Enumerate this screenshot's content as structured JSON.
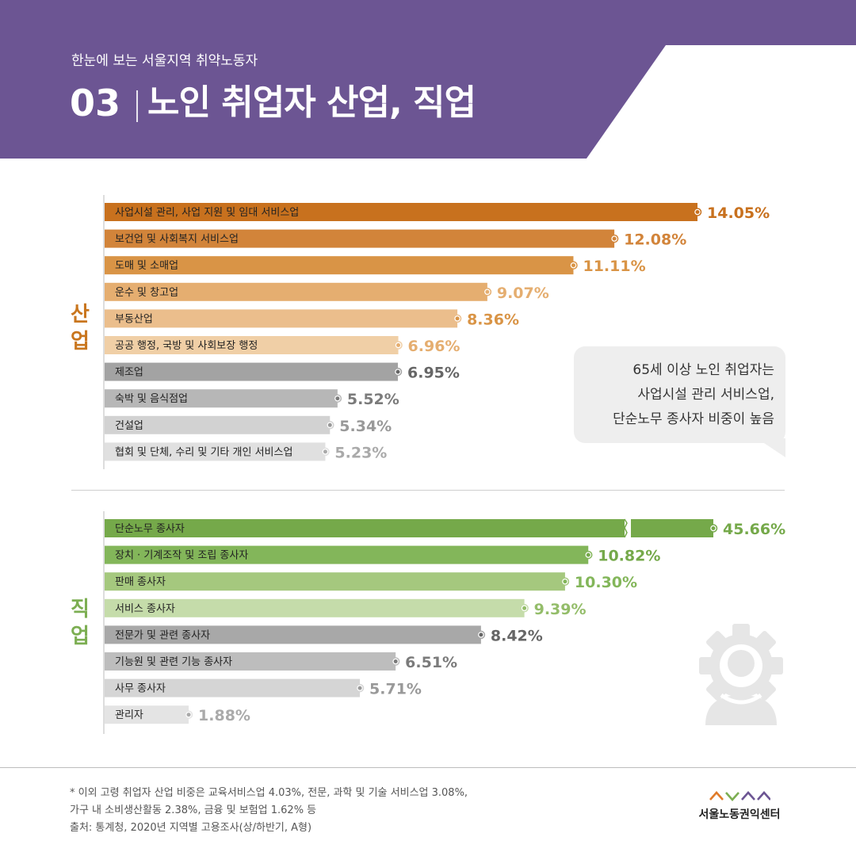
{
  "header": {
    "subtitle": "한눈에 보는 서울지역 취약노동자",
    "number": "03",
    "title": "노인 취업자 산업, 직업"
  },
  "sections": {
    "industry_label": [
      "산",
      "업"
    ],
    "occupation_label": [
      "직",
      "업"
    ]
  },
  "callout": {
    "lines": [
      "65세 이상 노인 취업자는",
      "사업시설 관리 서비스업,",
      "단순노무 종사자 비중이 높음"
    ]
  },
  "colors": {
    "header": "#6c5593",
    "industry_label": "#c9761e",
    "occupation_label": "#7cae52"
  },
  "icons": {
    "occupation_decoration": "gear-person-icon",
    "logo": "chevron-wave-icon"
  },
  "chart_data": [
    {
      "type": "bar",
      "orientation": "horizontal",
      "unit": "%",
      "categories": [
        "사업시설 관리, 사업 지원 및 임대 서비스업",
        "보건업 및 사회복지 서비스업",
        "도매 및 소매업",
        "운수 및 창고업",
        "부동산업",
        "공공 행정, 국방 및 사회보장 행정",
        "제조업",
        "숙박 및 음식점업",
        "건설업",
        "협회 및 단체, 수리 및 기타 개인  서비스업"
      ],
      "values": [
        14.05,
        12.08,
        11.11,
        9.07,
        8.36,
        6.96,
        6.95,
        5.52,
        5.34,
        5.23
      ],
      "value_labels": [
        "14.05%",
        "12.08%",
        "11.11%",
        "9.07%",
        "8.36%",
        "6.96%",
        "6.95%",
        "5.52%",
        "5.34%",
        "5.23%"
      ],
      "bar_colors": [
        "#c8711e",
        "#d2843a",
        "#d99446",
        "#e5ae70",
        "#ebbe8c",
        "#f0cfa6",
        "#a3a3a3",
        "#b7b7b7",
        "#d2d2d2",
        "#e0e0e0"
      ],
      "label_colors": [
        "#c8711e",
        "#d2843a",
        "#d99446",
        "#e5ae70",
        "#d99446",
        "#e5ae70",
        "#666666",
        "#7b7b7b",
        "#999999",
        "#aaaaaa"
      ],
      "xlim": [
        0,
        14.05
      ]
    },
    {
      "type": "bar",
      "orientation": "horizontal",
      "unit": "%",
      "axis_break": true,
      "categories": [
        "단순노무 종사자",
        "장치 · 기계조작 및 조립 종사자",
        "판매 종사자",
        "서비스 종사자",
        "전문가 및 관련 종사자",
        "기능원 및 관련 기능 종사자",
        "사무 종사자",
        "관리자"
      ],
      "values": [
        45.66,
        10.82,
        10.3,
        9.39,
        8.42,
        6.51,
        5.71,
        1.88
      ],
      "value_labels": [
        "45.66%",
        "10.82%",
        "10.30%",
        "9.39%",
        "8.42%",
        "6.51%",
        "5.71%",
        "1.88%"
      ],
      "bar_colors": [
        "#75a94a",
        "#83b65a",
        "#a5c87e",
        "#c5dcaa",
        "#a8a8a8",
        "#bdbdbd",
        "#d5d5d5",
        "#e4e4e4"
      ],
      "label_colors": [
        "#75a94a",
        "#75a94a",
        "#83b65a",
        "#94bd6a",
        "#666666",
        "#7b7b7b",
        "#999999",
        "#aaaaaa"
      ]
    }
  ],
  "footnote": {
    "lines": [
      "* 이외 고령 취업자 산업 비중은 교육서비스업 4.03%, 전문, 과학 및 기술 서비스업 3.08%,",
      "   가구 내 소비생산활동 2.38%, 금융 및 보험업 1.62% 등",
      "출처: 통계청, 2020년 지역별 고용조사(상/하반기, A형)"
    ]
  },
  "logo": {
    "name": "서울노동권익센터"
  }
}
